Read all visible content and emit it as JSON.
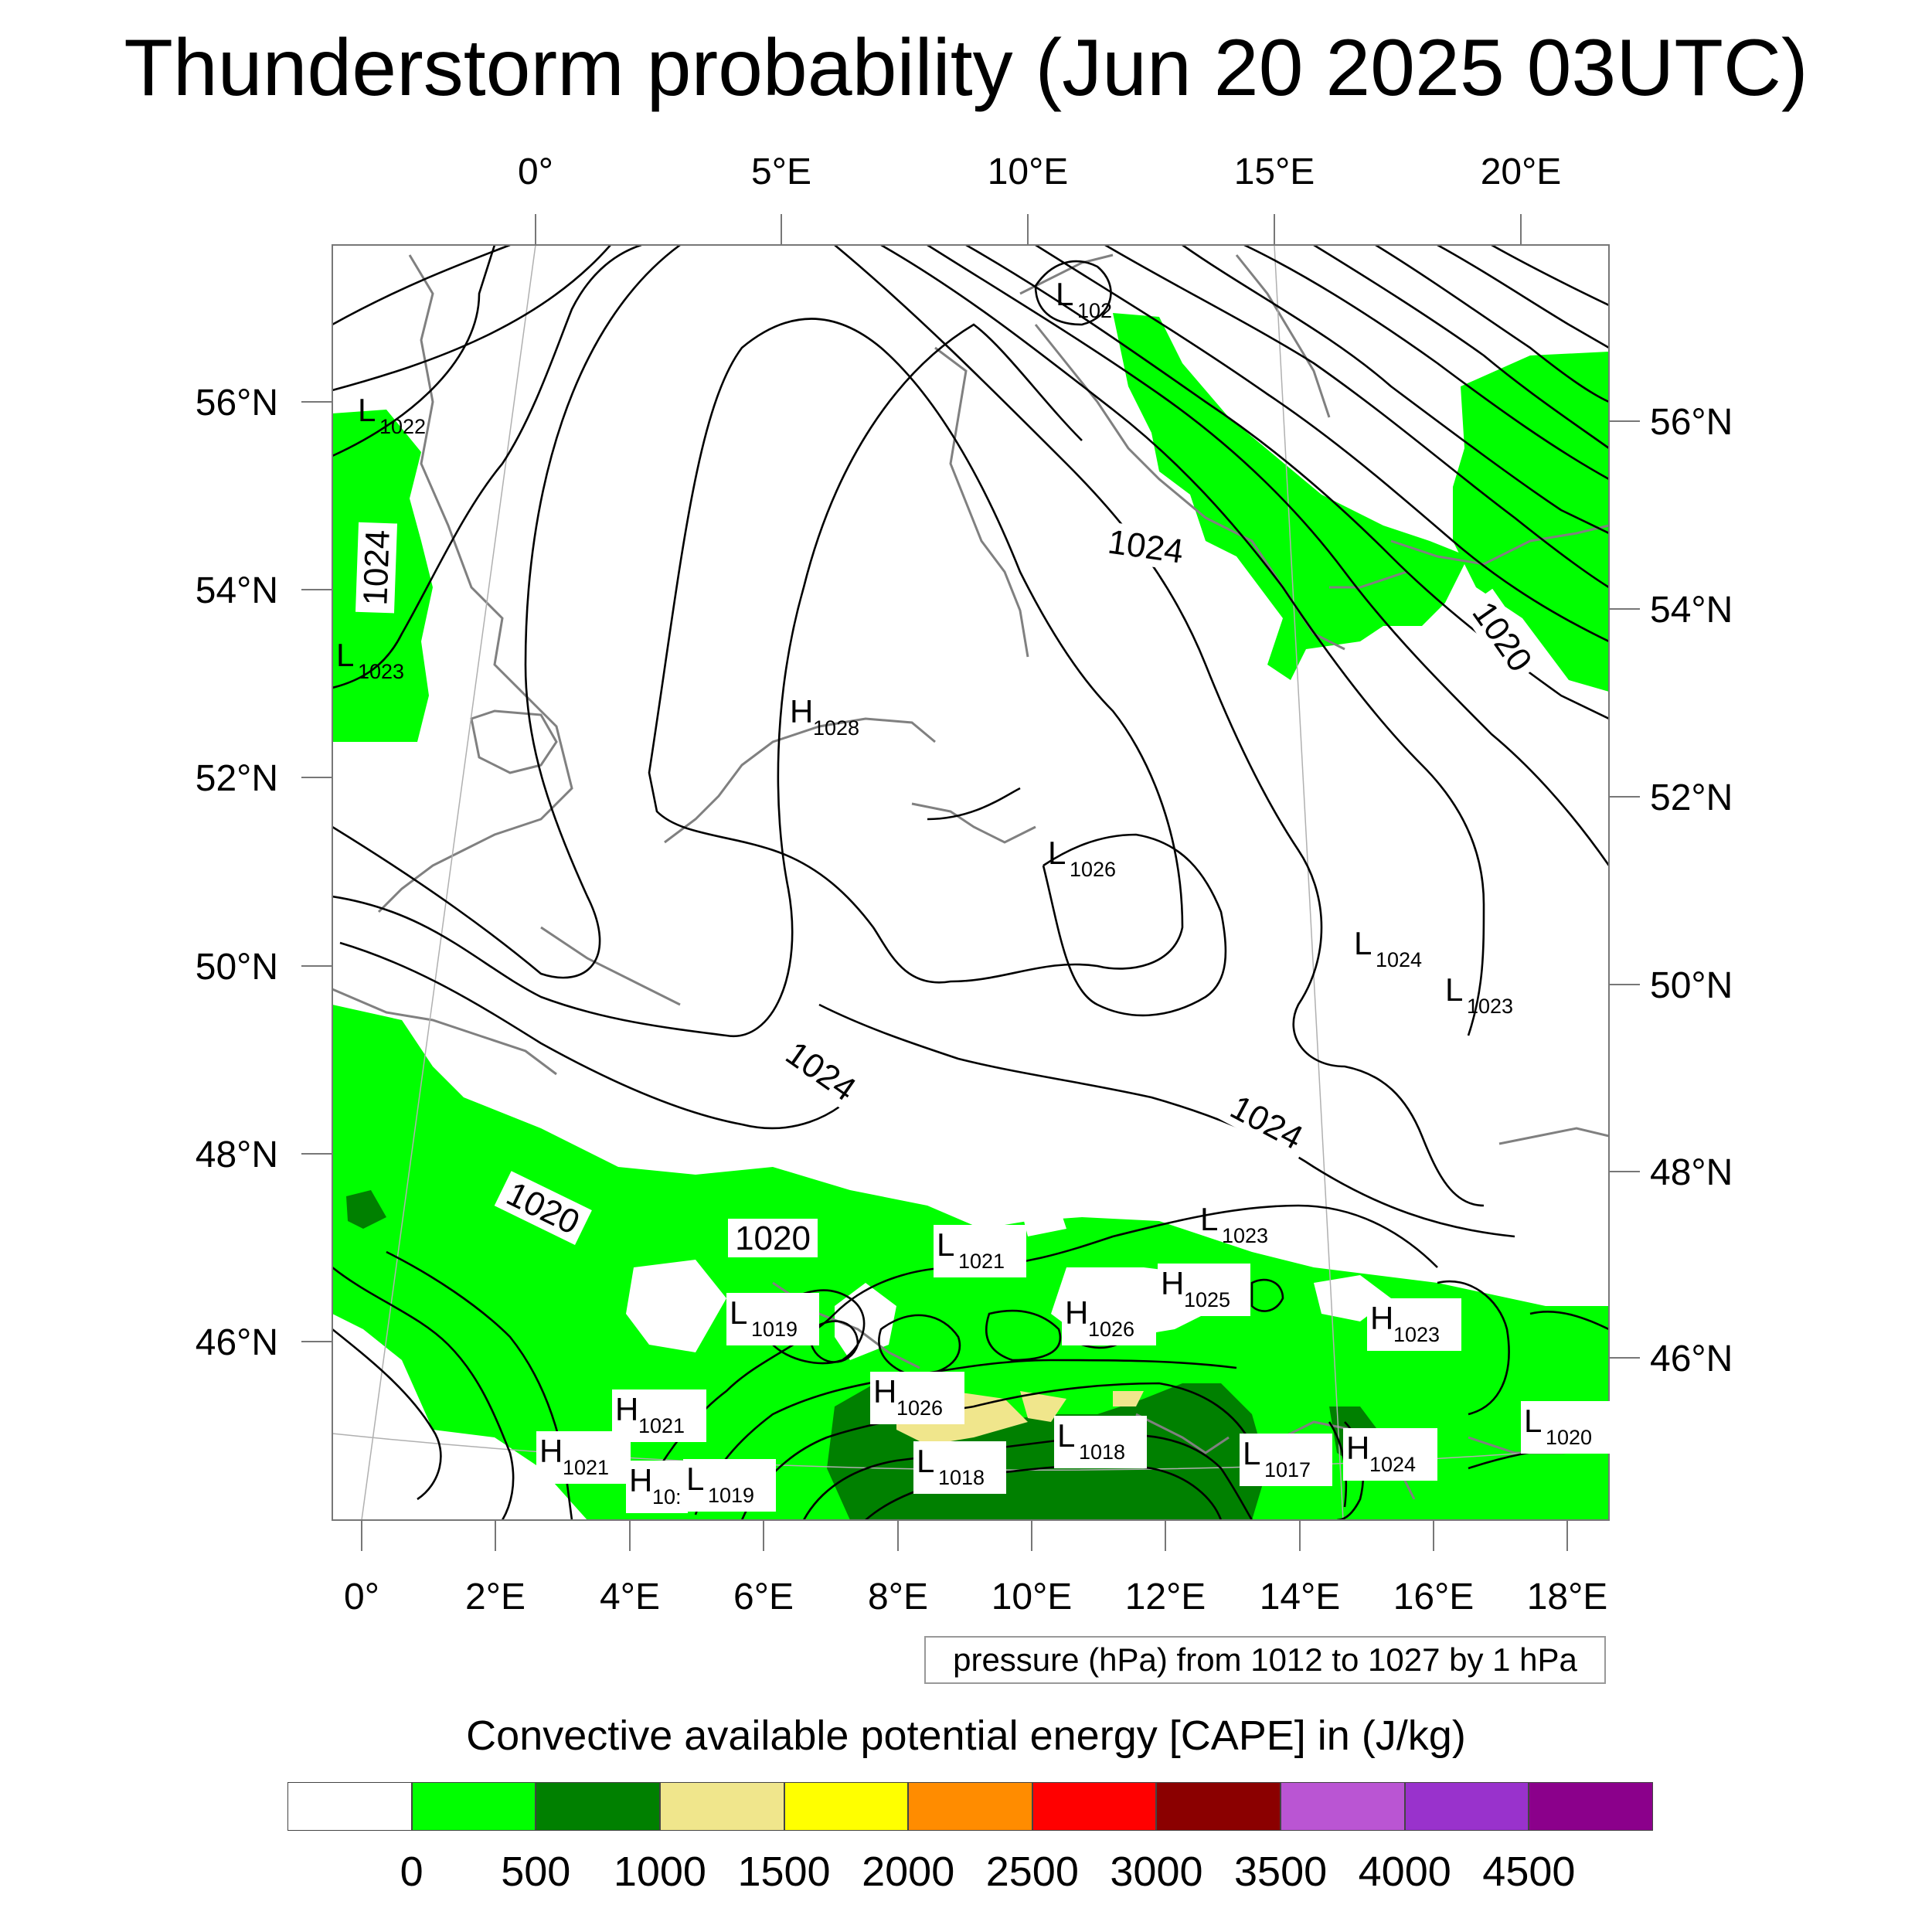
{
  "title": "Thunderstorm probability (Jun 20 2025 03UTC)",
  "top_lon_labels": [
    "0°",
    "5°E",
    "10°E",
    "15°E",
    "20°E"
  ],
  "bottom_lon_labels": [
    "0°",
    "2°E",
    "4°E",
    "6°E",
    "8°E",
    "10°E",
    "12°E",
    "14°E",
    "16°E",
    "18°E"
  ],
  "left_lat_labels": [
    "56°N",
    "54°N",
    "52°N",
    "50°N",
    "48°N",
    "46°N"
  ],
  "right_lat_labels": [
    "56°N",
    "54°N",
    "52°N",
    "50°N",
    "48°N",
    "46°N"
  ],
  "contour_labels": [
    "1024",
    "1024",
    "1020",
    "1024",
    "1024",
    "1020",
    "1020"
  ],
  "pressure_centers": [
    {
      "t": "L",
      "n": "1022"
    },
    {
      "t": "L",
      "n": "1023"
    },
    {
      "t": "L",
      "n": "102"
    },
    {
      "t": "H",
      "n": "1028"
    },
    {
      "t": "L",
      "n": "1026"
    },
    {
      "t": "L",
      "n": "1024"
    },
    {
      "t": "L",
      "n": "1023"
    },
    {
      "t": "L",
      "n": "1023"
    },
    {
      "t": "L",
      "n": "1021"
    },
    {
      "t": "H",
      "n": "1025"
    },
    {
      "t": "H",
      "n": "1026"
    },
    {
      "t": "L",
      "n": "1019"
    },
    {
      "t": "H",
      "n": "1023"
    },
    {
      "t": "H",
      "n": "1026"
    },
    {
      "t": "H",
      "n": "1021"
    },
    {
      "t": "H",
      "n": "1021"
    },
    {
      "t": "H",
      "n": "10:"
    },
    {
      "t": "L",
      "n": "1019"
    },
    {
      "t": "L",
      "n": "1018"
    },
    {
      "t": "L",
      "n": "1018"
    },
    {
      "t": "L",
      "n": "1017"
    },
    {
      "t": "H",
      "n": "1024"
    },
    {
      "t": "L",
      "n": "1020"
    }
  ],
  "pressure_note": "pressure (hPa) from 1012 to 1027 by 1 hPa",
  "colorbar": {
    "title": "Convective available potential energy [CAPE] in (J/kg)",
    "colors": [
      "#ffffff",
      "#00ff00",
      "#008000",
      "#f0e68c",
      "#ffff00",
      "#ff8c00",
      "#ff0000",
      "#8b0000",
      "#ba55d3",
      "#9932cc",
      "#8b008b"
    ],
    "ticks": [
      "0",
      "500",
      "1000",
      "1500",
      "2000",
      "2500",
      "3000",
      "3500",
      "4000",
      "4500"
    ]
  },
  "cape_colors": {
    "none": "#ffffff",
    "c0_500": "#00ff00",
    "c500_1000": "#008000",
    "c1000_1500": "#f0e68c"
  }
}
